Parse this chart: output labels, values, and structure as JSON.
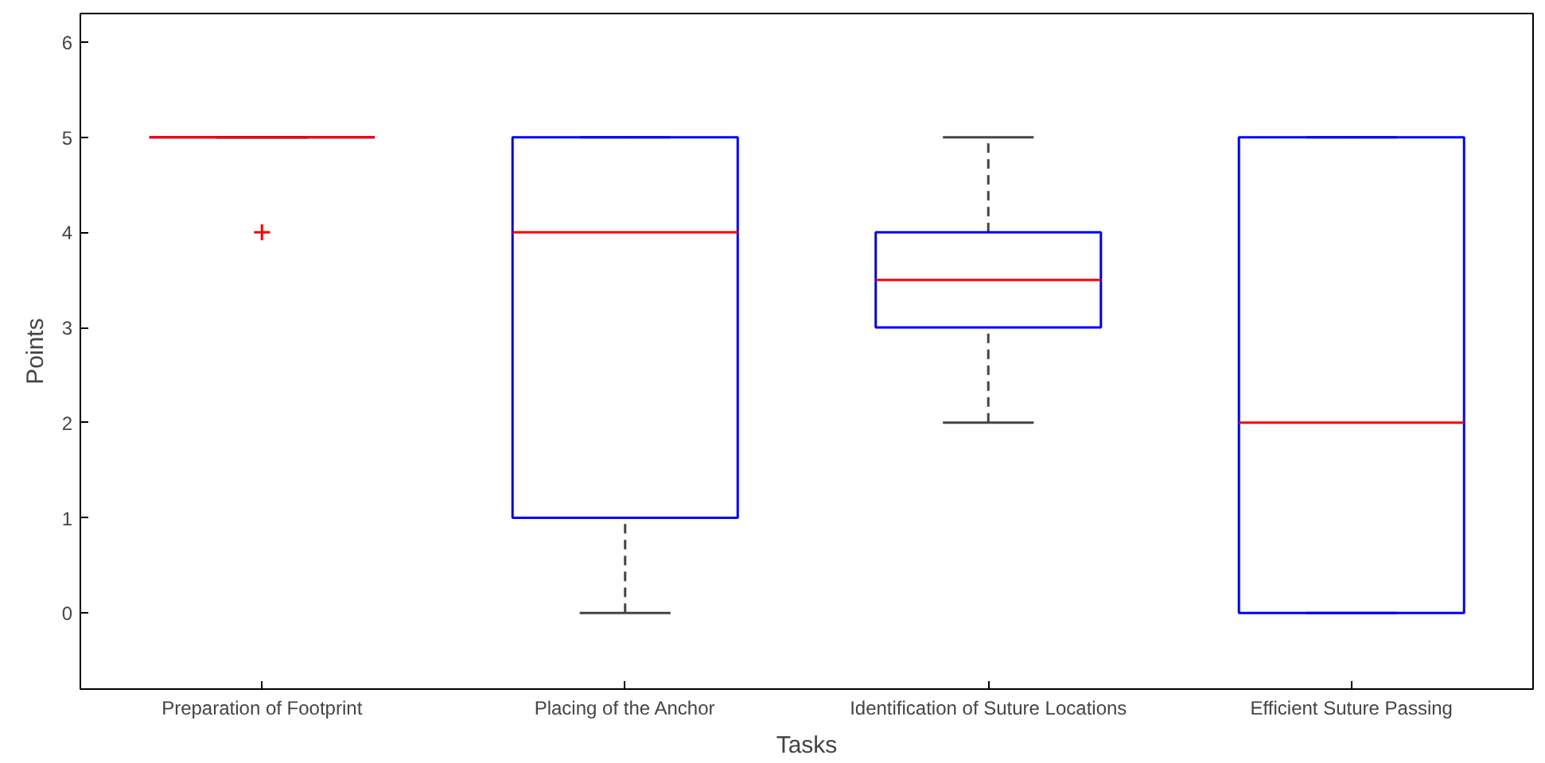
{
  "chart_data": {
    "type": "box",
    "xlabel": "Tasks",
    "ylabel": "Points",
    "categories": [
      "Preparation of Footprint",
      "Placing of the Anchor",
      "Identification of Suture Locations",
      "Efficient Suture Passing"
    ],
    "series": [
      {
        "color": "#0000ff",
        "boxes": [
          {
            "low": 5,
            "q1": 5,
            "median": 5,
            "q3": 5,
            "high": 5,
            "outliers": [
              4
            ]
          },
          {
            "low": 0,
            "q1": 1,
            "median": 4,
            "q3": 5,
            "high": 5
          },
          {
            "low": 2,
            "q1": 3,
            "median": 3.5,
            "q3": 4,
            "high": 5
          },
          {
            "low": 0,
            "q1": 0,
            "median": 2,
            "q3": 5,
            "high": 5
          }
        ]
      }
    ],
    "ylim": [
      -0.8,
      6.3
    ],
    "yticks": [
      0,
      1,
      2,
      3,
      4,
      5,
      6
    ],
    "grid": false,
    "marker": "cross"
  }
}
